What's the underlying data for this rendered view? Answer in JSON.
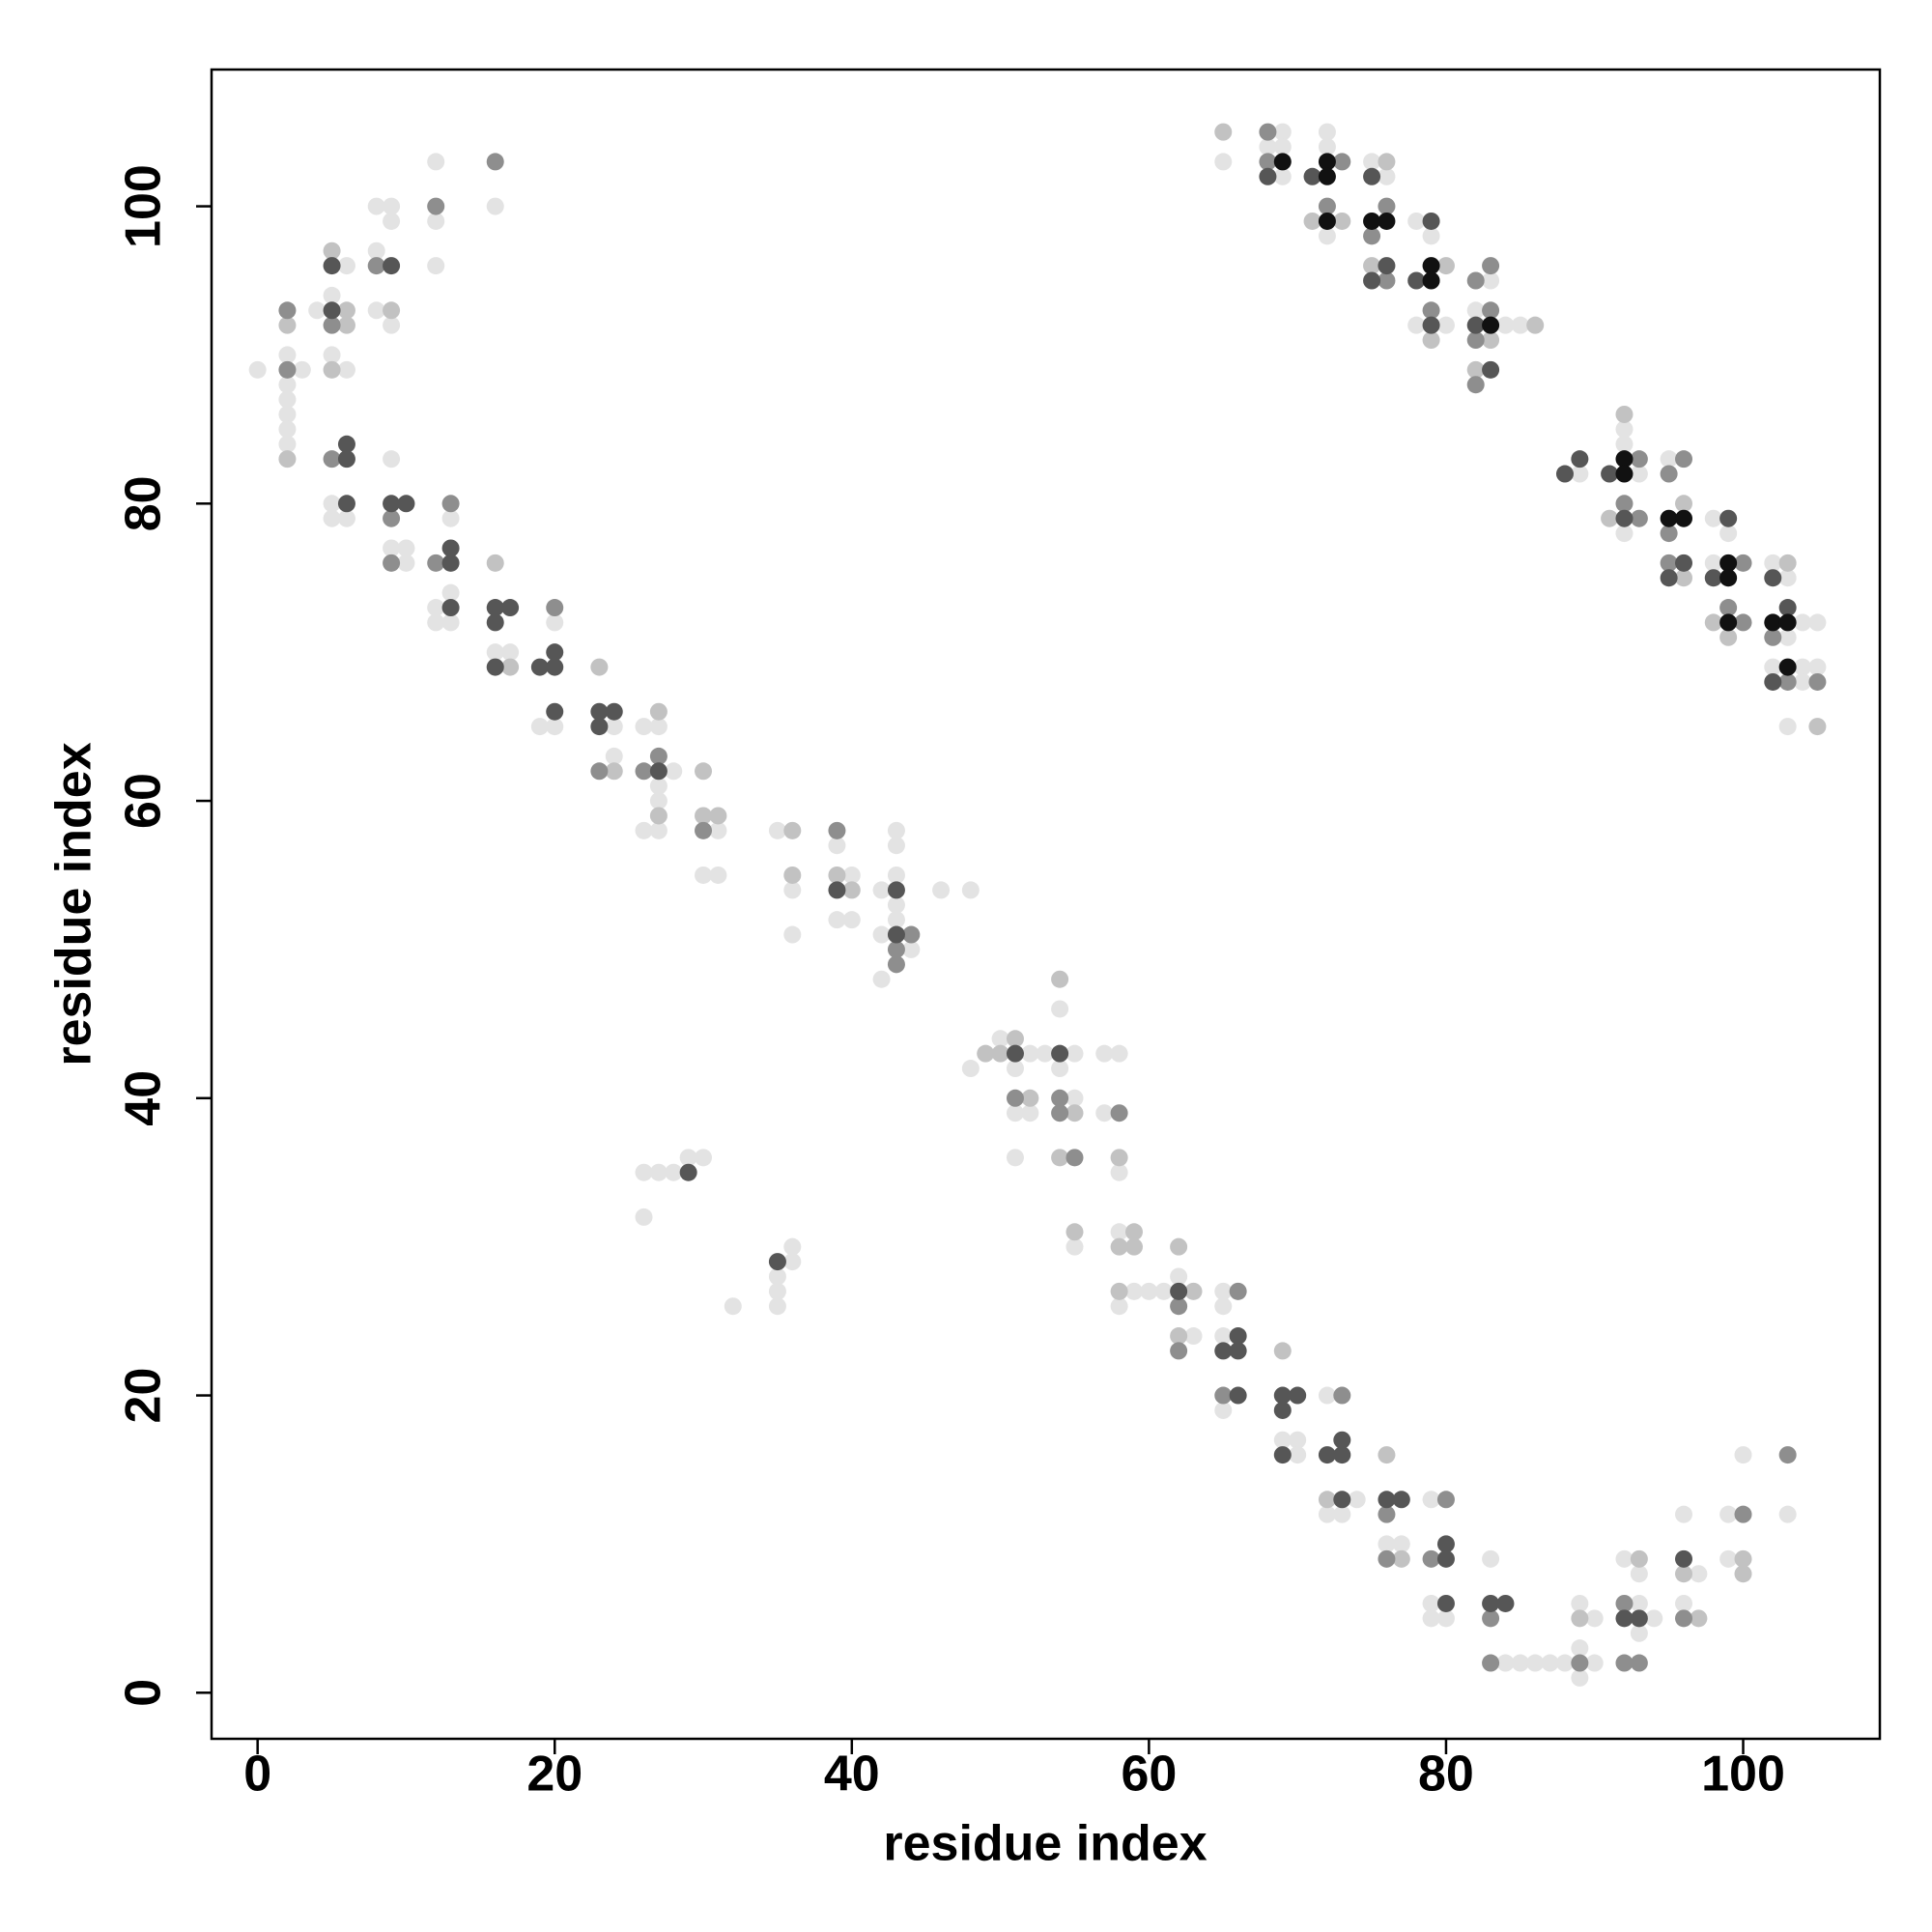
{
  "chart_data": {
    "type": "scatter",
    "x_label": "residue index",
    "y_label": "residue index",
    "xlim": [
      -3.1,
      109.2
    ],
    "ylim": [
      -3.1,
      109.2
    ],
    "xticks": [
      0,
      20,
      40,
      60,
      80,
      100
    ],
    "yticks": [
      0,
      20,
      40,
      60,
      80,
      100
    ],
    "grid": false,
    "series": [
      {
        "color": "#e3e3e3",
        "x": [
          0,
          2,
          2,
          2,
          2,
          2,
          2,
          3,
          4,
          5,
          5,
          5,
          5,
          6,
          6,
          6,
          8,
          8,
          8,
          9,
          9,
          9,
          9,
          9,
          10,
          10,
          12,
          12,
          12,
          12,
          12,
          13,
          13,
          13,
          16,
          16,
          17,
          19,
          20,
          20,
          24,
          24,
          26,
          26,
          27,
          27,
          27,
          27,
          28,
          30,
          31,
          31,
          35,
          36,
          36,
          39,
          39,
          40,
          40,
          42,
          42,
          42,
          43,
          43,
          43,
          43,
          43,
          44,
          46,
          48,
          48,
          50,
          51,
          51,
          51,
          52,
          52,
          53,
          54,
          54,
          55,
          55,
          55,
          57,
          57,
          58,
          58,
          58,
          58,
          59,
          60,
          61,
          62,
          63,
          65,
          65,
          65,
          65,
          69,
          70,
          70,
          72,
          72,
          73,
          74,
          76,
          77,
          79,
          79,
          79,
          80,
          83,
          84,
          85,
          86,
          87,
          88,
          89,
          89,
          89,
          90,
          90,
          92,
          93,
          93,
          93,
          94,
          96,
          96,
          97,
          99,
          99,
          100,
          103,
          26,
          26,
          27,
          28,
          29,
          30,
          32,
          35,
          35,
          35,
          36,
          36,
          65,
          68,
          69,
          69,
          69,
          72,
          72,
          72,
          75,
          76,
          78,
          78,
          79,
          80,
          82,
          83,
          84,
          85,
          89,
          92,
          92,
          92,
          93,
          95,
          98,
          98,
          99,
          102,
          102,
          103,
          103,
          103,
          104,
          104,
          104,
          105,
          105
        ],
        "values": [
          89,
          90,
          88,
          87,
          86,
          85,
          84,
          89,
          93,
          94,
          90,
          80,
          79,
          96,
          89,
          79,
          100,
          97,
          93,
          100,
          99,
          92,
          83,
          77,
          77,
          76,
          103,
          99,
          96,
          73,
          72,
          79,
          74,
          72,
          100,
          70,
          70,
          65,
          72,
          65,
          65,
          63,
          65,
          58,
          65,
          61,
          60,
          58,
          62,
          55,
          58,
          55,
          58,
          54,
          51,
          57,
          52,
          55,
          52,
          54,
          51,
          48,
          58,
          57,
          55,
          53,
          52,
          50,
          54,
          54,
          42,
          44,
          42,
          39,
          36,
          43,
          39,
          43,
          46,
          42,
          43,
          40,
          30,
          43,
          39,
          43,
          35,
          31,
          26,
          27,
          27,
          27,
          28,
          24,
          27,
          26,
          24,
          19,
          17,
          17,
          16,
          20,
          12,
          12,
          13,
          10,
          10,
          13,
          6,
          5,
          5,
          9,
          2,
          2,
          2,
          2,
          2,
          6,
          3,
          1,
          5,
          2,
          9,
          8,
          6,
          4,
          5,
          12,
          6,
          8,
          12,
          9,
          16,
          12,
          35,
          32,
          35,
          35,
          36,
          36,
          26,
          28,
          27,
          26,
          30,
          29,
          103,
          104,
          105,
          104,
          102,
          105,
          104,
          98,
          103,
          102,
          99,
          92,
          98,
          92,
          93,
          95,
          92,
          92,
          82,
          85,
          84,
          78,
          82,
          83,
          79,
          76,
          78,
          76,
          69,
          75,
          71,
          65,
          72,
          69,
          68,
          72,
          69
        ]
      },
      {
        "color": "#c2c2c2",
        "x": [
          2,
          2,
          5,
          5,
          6,
          6,
          9,
          16,
          17,
          23,
          24,
          27,
          27,
          30,
          30,
          31,
          36,
          36,
          39,
          40,
          49,
          50,
          51,
          52,
          54,
          54,
          55,
          55,
          58,
          58,
          58,
          59,
          59,
          62,
          62,
          63,
          69,
          72,
          76,
          77,
          89,
          93,
          96,
          97,
          100,
          100,
          65,
          71,
          73,
          75,
          76,
          79,
          80,
          82,
          83,
          86,
          91,
          92,
          96,
          96,
          98,
          99,
          103,
          105
        ],
        "values": [
          92,
          83,
          97,
          89,
          93,
          92,
          93,
          76,
          69,
          69,
          62,
          66,
          59,
          62,
          59,
          59,
          58,
          55,
          55,
          54,
          43,
          43,
          44,
          40,
          48,
          36,
          39,
          31,
          36,
          30,
          27,
          31,
          30,
          30,
          24,
          27,
          23,
          13,
          16,
          9,
          5,
          9,
          8,
          5,
          9,
          8,
          105,
          99,
          99,
          96,
          103,
          91,
          96,
          89,
          91,
          92,
          79,
          86,
          80,
          75,
          72,
          71,
          76,
          65
        ]
      },
      {
        "color": "#8e8e8e",
        "x": [
          2,
          2,
          5,
          5,
          8,
          9,
          9,
          12,
          12,
          13,
          16,
          20,
          23,
          26,
          27,
          30,
          39,
          43,
          43,
          44,
          51,
          54,
          54,
          55,
          58,
          62,
          62,
          65,
          66,
          73,
          76,
          76,
          79,
          80,
          83,
          83,
          89,
          92,
          92,
          93,
          96,
          100,
          103,
          68,
          68,
          72,
          73,
          75,
          76,
          76,
          79,
          82,
          82,
          82,
          83,
          83,
          92,
          93,
          93,
          95,
          95,
          95,
          96,
          99,
          100,
          100,
          102,
          103,
          105
        ],
        "values": [
          93,
          89,
          92,
          83,
          96,
          79,
          76,
          100,
          76,
          80,
          103,
          73,
          62,
          62,
          63,
          58,
          58,
          50,
          49,
          51,
          40,
          40,
          39,
          36,
          39,
          26,
          23,
          20,
          27,
          20,
          12,
          9,
          9,
          13,
          5,
          2,
          2,
          6,
          2,
          2,
          5,
          12,
          16,
          105,
          103,
          100,
          103,
          98,
          100,
          95,
          93,
          95,
          91,
          88,
          96,
          93,
          80,
          83,
          79,
          82,
          78,
          76,
          83,
          73,
          76,
          72,
          71,
          68,
          68
        ]
      },
      {
        "color": "#565656",
        "x": [
          5,
          5,
          6,
          6,
          6,
          9,
          9,
          10,
          13,
          13,
          13,
          16,
          16,
          16,
          17,
          19,
          20,
          20,
          20,
          23,
          23,
          24,
          27,
          39,
          43,
          43,
          51,
          54,
          62,
          65,
          66,
          66,
          66,
          69,
          69,
          69,
          70,
          72,
          73,
          73,
          73,
          76,
          77,
          80,
          80,
          80,
          83,
          84,
          92,
          93,
          96,
          29,
          35,
          68,
          71,
          75,
          75,
          76,
          78,
          79,
          79,
          82,
          83,
          88,
          89,
          91,
          92,
          95,
          96,
          98,
          99,
          102,
          102,
          103
        ],
        "values": [
          96,
          93,
          84,
          83,
          80,
          96,
          80,
          80,
          77,
          76,
          73,
          73,
          72,
          69,
          73,
          69,
          70,
          69,
          66,
          66,
          65,
          66,
          62,
          54,
          54,
          51,
          43,
          43,
          27,
          23,
          24,
          23,
          20,
          20,
          19,
          16,
          20,
          16,
          17,
          16,
          13,
          13,
          13,
          10,
          9,
          6,
          6,
          6,
          5,
          5,
          9,
          35,
          29,
          102,
          102,
          102,
          95,
          96,
          95,
          99,
          92,
          92,
          89,
          82,
          83,
          82,
          79,
          75,
          76,
          75,
          79,
          75,
          68,
          73
        ]
      },
      {
        "color": "#111111",
        "x": [
          69,
          72,
          72,
          72,
          75,
          76,
          79,
          79,
          83,
          92,
          92,
          95,
          96,
          99,
          99,
          99,
          102,
          103,
          103
        ],
        "values": [
          103,
          103,
          102,
          99,
          99,
          99,
          96,
          95,
          92,
          83,
          82,
          79,
          79,
          76,
          75,
          72,
          72,
          72,
          69
        ]
      }
    ]
  }
}
